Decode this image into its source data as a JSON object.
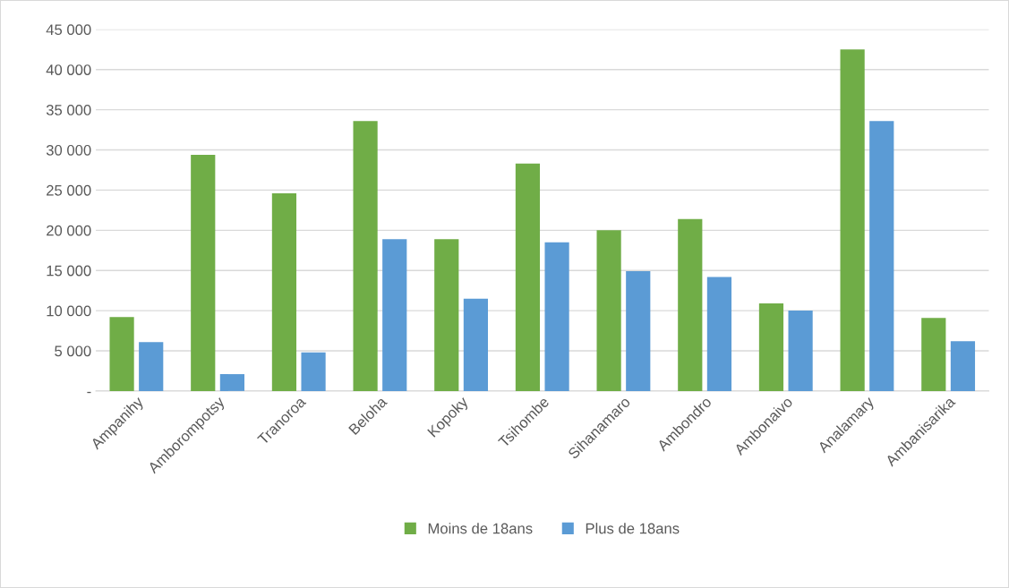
{
  "chart_data": {
    "type": "bar",
    "categories": [
      "Ampanihy",
      "Amborompotsy",
      "Tranoroa",
      "Beloha",
      "Kopoky",
      "Tsihombe",
      "Sihanamaro",
      "Ambondro",
      "Ambonaivo",
      "Analamary",
      "Ambanisarika"
    ],
    "series": [
      {
        "name": "Moins de 18ans",
        "color": "#70ad47",
        "values": [
          9200,
          29400,
          24600,
          33600,
          18900,
          28300,
          20000,
          21400,
          10900,
          42500,
          9100
        ]
      },
      {
        "name": "Plus de 18ans",
        "color": "#5b9bd5",
        "values": [
          6100,
          2100,
          4800,
          18900,
          11500,
          18500,
          14900,
          14200,
          10000,
          33600,
          6200
        ]
      }
    ],
    "ylim": [
      0,
      45000
    ],
    "yticks": [
      {
        "value": 0,
        "label": "-"
      },
      {
        "value": 5000,
        "label": "5 000"
      },
      {
        "value": 10000,
        "label": "10 000"
      },
      {
        "value": 15000,
        "label": "15 000"
      },
      {
        "value": 20000,
        "label": "20 000"
      },
      {
        "value": 25000,
        "label": "25 000"
      },
      {
        "value": 30000,
        "label": "30 000"
      },
      {
        "value": 35000,
        "label": "35 000"
      },
      {
        "value": 40000,
        "label": "40 000"
      },
      {
        "value": 45000,
        "label": "45 000"
      }
    ],
    "grid": "y",
    "legend": "bottom"
  }
}
